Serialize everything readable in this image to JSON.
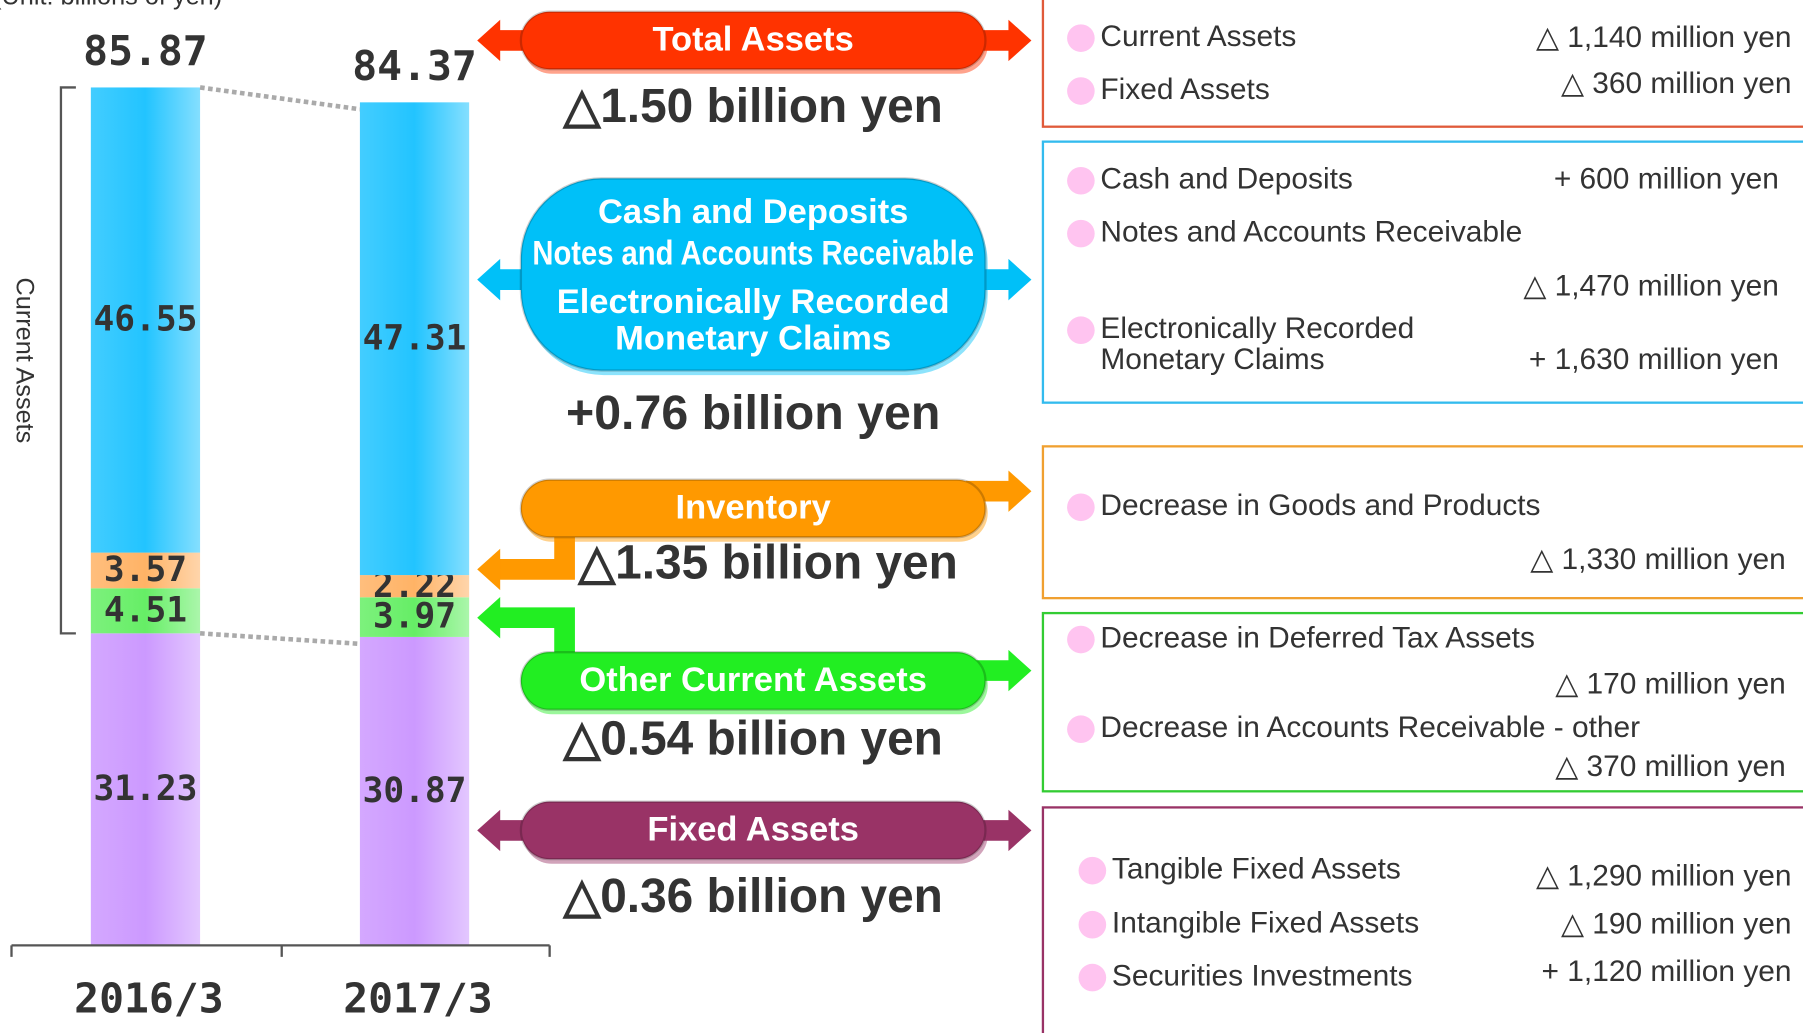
{
  "unit_label": "(Unit: billions of yen)",
  "chart_data": {
    "type": "bar",
    "stacked": true,
    "categories": [
      "2016/3",
      "2017/3"
    ],
    "totals": [
      85.87,
      84.37
    ],
    "bracket_label": "Current Assets",
    "series": [
      {
        "color": "#cc99ff",
        "values": [
          31.23,
          30.87
        ]
      },
      {
        "color": "#66ee66",
        "values": [
          4.51,
          3.97
        ]
      },
      {
        "color": "#ffb366",
        "values": [
          3.57,
          2.22
        ]
      },
      {
        "color": "#22c4ff",
        "values": [
          46.55,
          47.31
        ]
      }
    ]
  },
  "callouts": [
    {
      "title": [
        "Total Assets"
      ],
      "color": "#ff3300",
      "panel_color": "#e05a3a",
      "change": "△1.50 billion yen",
      "details": [
        {
          "label": "Current Assets",
          "value": "△ 1,140 million yen"
        },
        {
          "label": "Fixed Assets",
          "value": "△ 360 million yen"
        }
      ]
    },
    {
      "title": [
        "Cash and Deposits",
        "Notes and Accounts Receivable",
        "Electronically Recorded",
        "Monetary Claims"
      ],
      "color": "#00c0f8",
      "panel_color": "#33bbee",
      "change": "+0.76 billion yen",
      "details": [
        {
          "label": "Cash and Deposits",
          "value": "+ 600 million yen"
        },
        {
          "label": "Notes and Accounts Receivable",
          "value": "△ 1,470 million yen"
        },
        {
          "label": [
            "Electronically Recorded",
            "Monetary Claims"
          ],
          "value": "+ 1,630 million yen"
        }
      ]
    },
    {
      "title": [
        "Inventory"
      ],
      "color": "#ff9900",
      "panel_color": "#f0a030",
      "change": "△1.35 billion yen",
      "details": [
        {
          "label": "Decrease in Goods and Products",
          "value": "△ 1,330 million yen"
        }
      ]
    },
    {
      "title": [
        "Other Current Assets"
      ],
      "color": "#22ee22",
      "panel_color": "#33cc33",
      "change": "△0.54 billion yen",
      "details": [
        {
          "label": "Decrease in Deferred Tax Assets",
          "value": "△ 170 million yen"
        },
        {
          "label": "Decrease in Accounts Receivable - other",
          "value": "△ 370 million yen"
        }
      ]
    },
    {
      "title": [
        "Fixed Assets"
      ],
      "color": "#993366",
      "panel_color": "#993366",
      "change": "△0.36 billion yen",
      "details": [
        {
          "label": "Tangible Fixed Assets",
          "value": "△ 1,290 million yen"
        },
        {
          "label": "Intangible Fixed Assets",
          "value": "△ 190 million yen"
        },
        {
          "label": "Securities Investments",
          "value": "+ 1,120 million yen"
        }
      ]
    }
  ]
}
